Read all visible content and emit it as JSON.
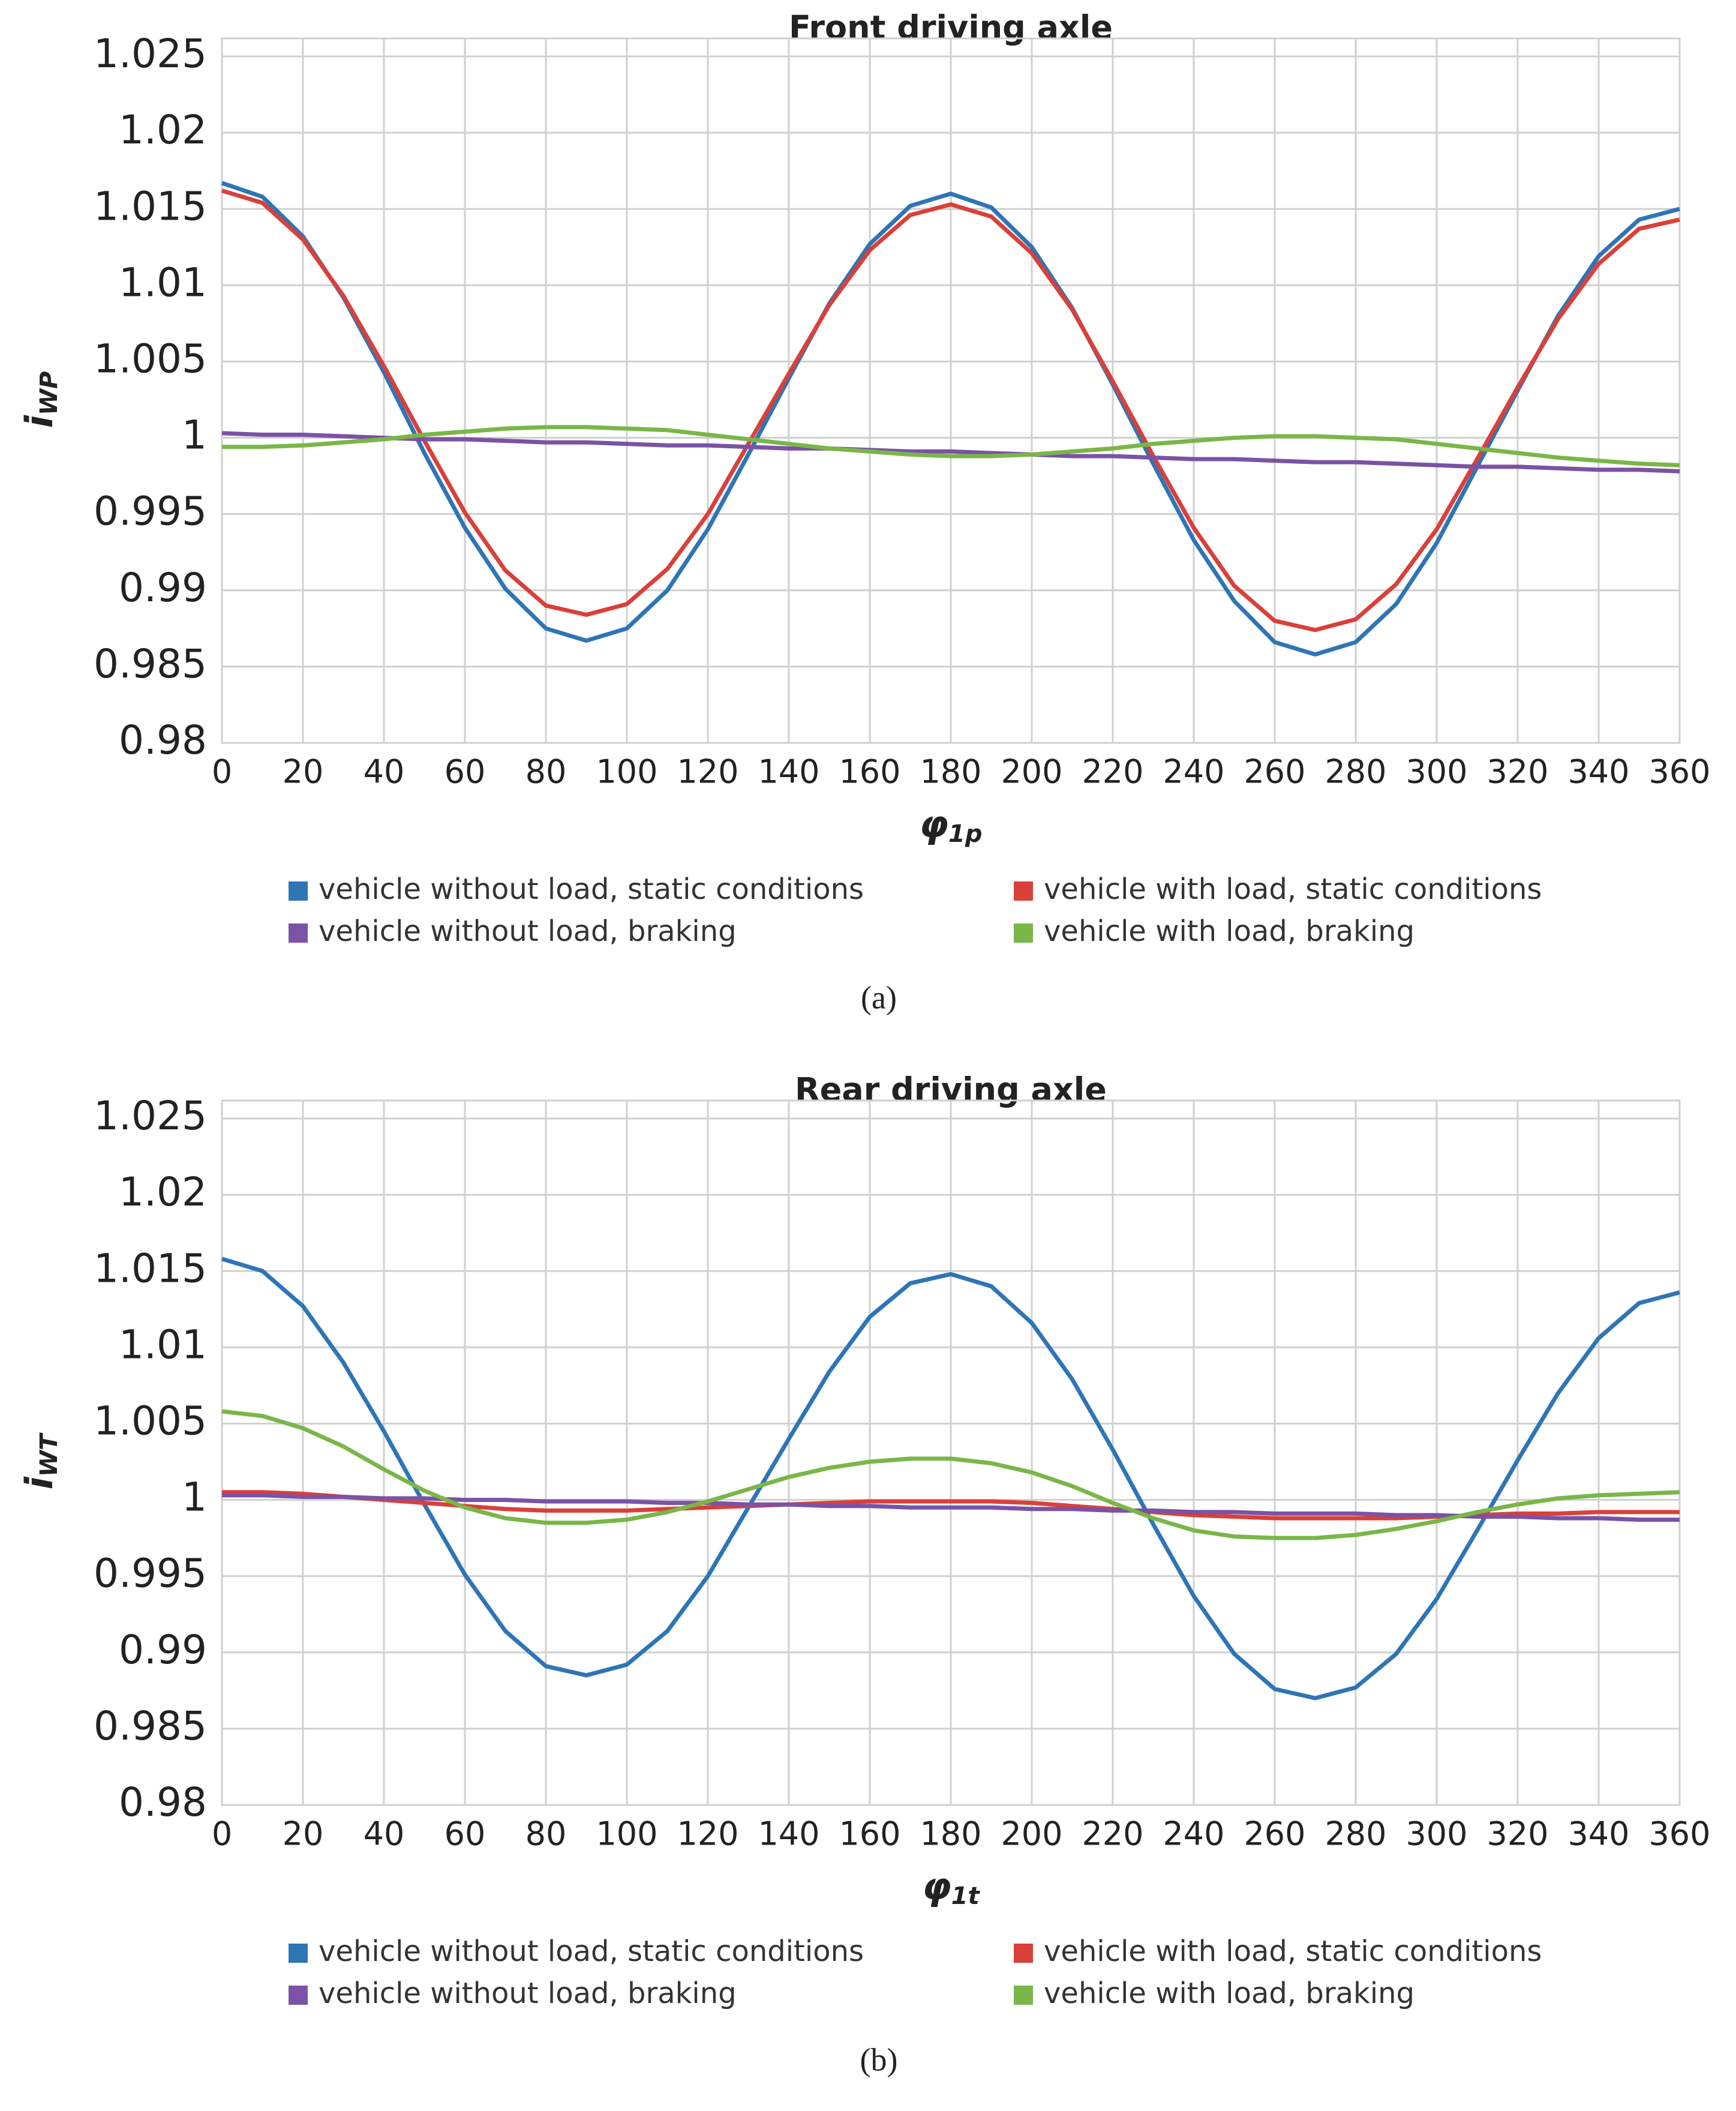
{
  "chart_data": [
    {
      "type": "line",
      "title": "Front driving axle",
      "caption": "(a)",
      "ylabel": {
        "main": "i",
        "sub": "WP"
      },
      "xlabel": {
        "main": "φ",
        "sub": "1p"
      },
      "x": [
        0,
        10,
        20,
        30,
        40,
        50,
        60,
        70,
        80,
        90,
        100,
        110,
        120,
        130,
        140,
        150,
        160,
        170,
        180,
        190,
        200,
        210,
        220,
        230,
        240,
        250,
        260,
        270,
        280,
        290,
        300,
        310,
        320,
        330,
        340,
        350,
        360
      ],
      "xlim": [
        0,
        360
      ],
      "xticks": [
        0,
        20,
        40,
        60,
        80,
        100,
        120,
        140,
        160,
        180,
        200,
        220,
        240,
        260,
        280,
        300,
        320,
        340,
        360
      ],
      "ylim": [
        0.98,
        1.025
      ],
      "yticks": [
        0.98,
        0.985,
        0.99,
        0.995,
        1,
        1.005,
        1.01,
        1.015,
        1.02,
        1.025
      ],
      "grid": true,
      "series": [
        {
          "name": "vehicle without load, static conditions",
          "color": "#2e75b6",
          "values": [
            1.0167,
            1.0158,
            1.0132,
            1.0092,
            1.0043,
            0.999,
            0.9941,
            0.9901,
            0.9875,
            0.9867,
            0.9875,
            0.99,
            0.994,
            0.9989,
            1.0039,
            1.0088,
            1.0127,
            1.0152,
            1.016,
            1.0151,
            1.0125,
            1.0085,
            1.0035,
            0.9983,
            0.9933,
            0.9893,
            0.9866,
            0.9858,
            0.9866,
            0.9891,
            0.9931,
            0.9981,
            1.0031,
            1.008,
            1.0119,
            1.0143,
            1.015
          ]
        },
        {
          "name": "vehicle with load, static conditions",
          "color": "#d9403a",
          "values": [
            1.0162,
            1.0154,
            1.013,
            1.0093,
            1.0047,
            0.9998,
            0.9951,
            0.9913,
            0.989,
            0.9884,
            0.9891,
            0.9914,
            0.995,
            0.9996,
            1.0042,
            1.0087,
            1.0123,
            1.0146,
            1.0153,
            1.0145,
            1.0121,
            1.0084,
            1.0037,
            0.9988,
            0.9941,
            0.9903,
            0.988,
            0.9874,
            0.9881,
            0.9904,
            0.994,
            0.9986,
            1.0033,
            1.0078,
            1.0114,
            1.0137,
            1.0143
          ]
        },
        {
          "name": "vehicle without load, braking",
          "color": "#7b52a6",
          "values": [
            1.0003,
            1.0002,
            1.0002,
            1.0001,
            1.0,
            0.9999,
            0.9999,
            0.9998,
            0.9997,
            0.9997,
            0.9996,
            0.9995,
            0.9995,
            0.9994,
            0.9993,
            0.9993,
            0.9992,
            0.9991,
            0.9991,
            0.999,
            0.9989,
            0.9988,
            0.9988,
            0.9987,
            0.9986,
            0.9986,
            0.9985,
            0.9984,
            0.9984,
            0.9983,
            0.9982,
            0.9981,
            0.9981,
            0.998,
            0.9979,
            0.9979,
            0.9978
          ]
        },
        {
          "name": "vehicle with load, braking",
          "color": "#7ab648",
          "values": [
            0.9994,
            0.9994,
            0.9995,
            0.9997,
            0.9999,
            1.0002,
            1.0004,
            1.0006,
            1.0007,
            1.0007,
            1.0006,
            1.0005,
            1.0002,
            0.9999,
            0.9996,
            0.9993,
            0.9991,
            0.9989,
            0.9988,
            0.9988,
            0.9989,
            0.9991,
            0.9993,
            0.9996,
            0.9998,
            1.0,
            1.0001,
            1.0001,
            1.0,
            0.9999,
            0.9996,
            0.9993,
            0.999,
            0.9987,
            0.9985,
            0.9983,
            0.9982
          ]
        }
      ]
    },
    {
      "type": "line",
      "title": "Rear driving axle",
      "caption": "(b)",
      "ylabel": {
        "main": "i",
        "sub": "WT"
      },
      "xlabel": {
        "main": "φ",
        "sub": "1t"
      },
      "x": [
        0,
        10,
        20,
        30,
        40,
        50,
        60,
        70,
        80,
        90,
        100,
        110,
        120,
        130,
        140,
        150,
        160,
        170,
        180,
        190,
        200,
        210,
        220,
        230,
        240,
        250,
        260,
        270,
        280,
        290,
        300,
        310,
        320,
        330,
        340,
        350,
        360
      ],
      "xlim": [
        0,
        360
      ],
      "xticks": [
        0,
        20,
        40,
        60,
        80,
        100,
        120,
        140,
        160,
        180,
        200,
        220,
        240,
        260,
        280,
        300,
        320,
        340,
        360
      ],
      "ylim": [
        0.98,
        1.025
      ],
      "yticks": [
        0.98,
        0.985,
        0.99,
        0.995,
        1,
        1.005,
        1.01,
        1.015,
        1.02,
        1.025
      ],
      "grid": true,
      "series": [
        {
          "name": "vehicle without load, static conditions",
          "color": "#2e75b6",
          "values": [
            1.0158,
            1.015,
            1.0127,
            1.009,
            1.0045,
            0.9997,
            0.9951,
            0.9914,
            0.9891,
            0.9885,
            0.9892,
            0.9914,
            0.995,
            0.9995,
            1.004,
            1.0084,
            1.012,
            1.0142,
            1.0148,
            1.014,
            1.0116,
            1.0079,
            1.0033,
            0.9984,
            0.9937,
            0.9899,
            0.9876,
            0.987,
            0.9877,
            0.9899,
            0.9935,
            0.998,
            1.0026,
            1.007,
            1.0106,
            1.0129,
            1.0136
          ]
        },
        {
          "name": "vehicle with load, static conditions",
          "color": "#d9403a",
          "values": [
            1.0005,
            1.0005,
            1.0004,
            1.0002,
            1.0,
            0.9998,
            0.9996,
            0.9994,
            0.9993,
            0.9993,
            0.9993,
            0.9994,
            0.9995,
            0.9996,
            0.9997,
            0.9998,
            0.9999,
            0.9999,
            0.9999,
            0.9999,
            0.9998,
            0.9996,
            0.9994,
            0.9992,
            0.999,
            0.9989,
            0.9988,
            0.9988,
            0.9988,
            0.9988,
            0.9989,
            0.999,
            0.9991,
            0.9991,
            0.9992,
            0.9992,
            0.9992
          ]
        },
        {
          "name": "vehicle without load, braking",
          "color": "#7b52a6",
          "values": [
            1.0003,
            1.0003,
            1.0002,
            1.0002,
            1.0001,
            1.0001,
            1.0,
            1.0,
            0.9999,
            0.9999,
            0.9999,
            0.9998,
            0.9998,
            0.9997,
            0.9997,
            0.9996,
            0.9996,
            0.9995,
            0.9995,
            0.9995,
            0.9994,
            0.9994,
            0.9993,
            0.9993,
            0.9992,
            0.9992,
            0.9991,
            0.9991,
            0.9991,
            0.999,
            0.999,
            0.9989,
            0.9989,
            0.9988,
            0.9988,
            0.9987,
            0.9987
          ]
        },
        {
          "name": "vehicle with load, braking",
          "color": "#7ab648",
          "values": [
            1.0058,
            1.0055,
            1.0047,
            1.0035,
            1.002,
            1.0006,
            0.9995,
            0.9988,
            0.9985,
            0.9985,
            0.9987,
            0.9992,
            0.9999,
            1.0007,
            1.0015,
            1.0021,
            1.0025,
            1.0027,
            1.0027,
            1.0024,
            1.0018,
            1.0009,
            0.9998,
            0.9988,
            0.998,
            0.9976,
            0.9975,
            0.9975,
            0.9977,
            0.9981,
            0.9986,
            0.9992,
            0.9997,
            1.0001,
            1.0003,
            1.0004,
            1.0005
          ]
        }
      ]
    }
  ]
}
